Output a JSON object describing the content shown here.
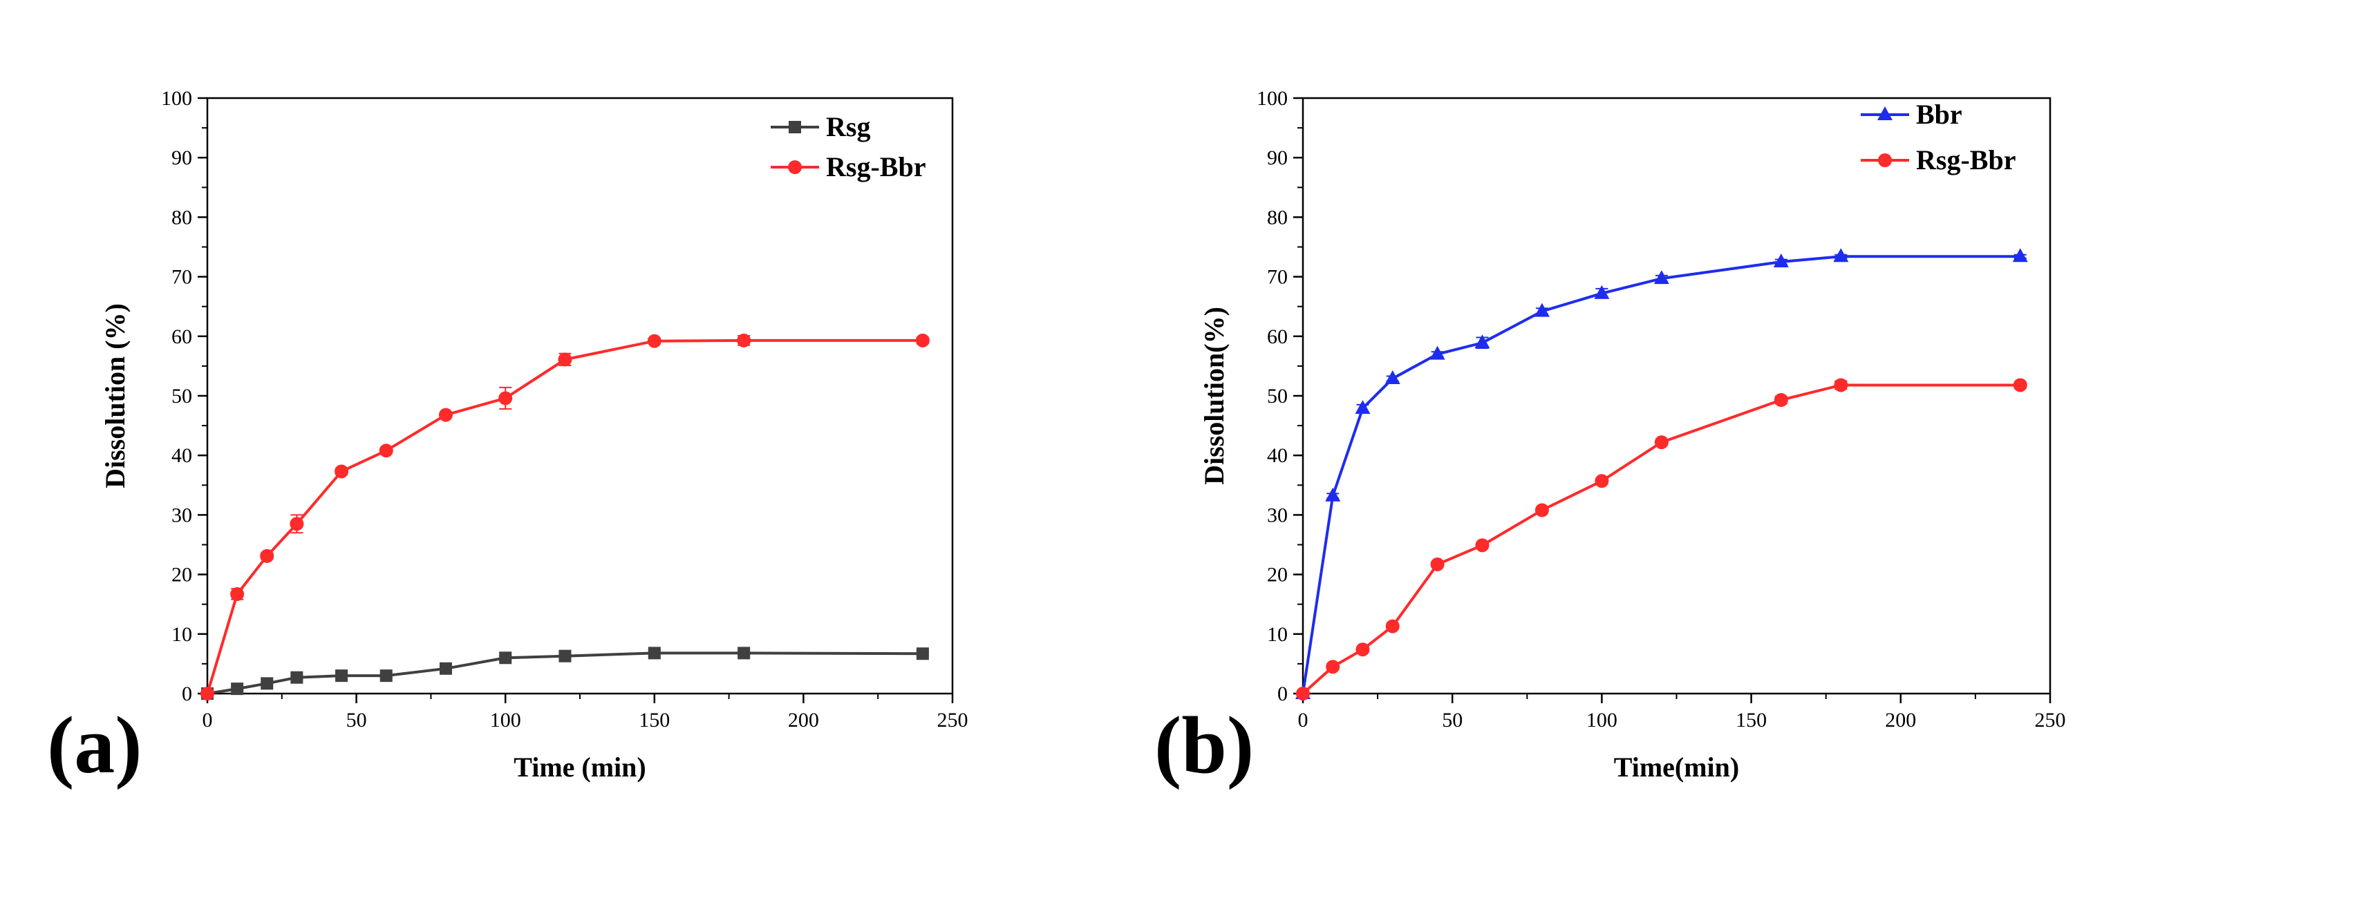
{
  "chart_data": [
    {
      "type": "line",
      "panel_label": "(a)",
      "xlabel": "Time (min)",
      "ylabel": "Dissolution (%)",
      "xlim": [
        0,
        250
      ],
      "ylim": [
        0,
        100
      ],
      "xticks": [
        0,
        50,
        100,
        150,
        200,
        250
      ],
      "yticks": [
        0,
        10,
        20,
        30,
        40,
        50,
        60,
        70,
        80,
        90,
        100
      ],
      "legend_position": "top-right",
      "series": [
        {
          "name": "Rsg",
          "color": "#404040",
          "marker": "square",
          "x": [
            0,
            10,
            20,
            30,
            45,
            60,
            80,
            100,
            120,
            150,
            180,
            240
          ],
          "y": [
            0,
            0.8,
            1.7,
            2.7,
            3.0,
            3.0,
            4.2,
            6.0,
            6.3,
            6.8,
            6.8,
            6.7
          ],
          "err": [
            0.1,
            0.2,
            0.3,
            0.3,
            0.3,
            0.3,
            0.3,
            0.4,
            0.3,
            0.5,
            0.3,
            0.3
          ]
        },
        {
          "name": "Rsg-Bbr",
          "color": "#ff2a2a",
          "marker": "circle",
          "x": [
            0,
            10,
            20,
            30,
            45,
            60,
            80,
            100,
            120,
            150,
            180,
            240
          ],
          "y": [
            0,
            16.7,
            23.1,
            28.5,
            37.3,
            40.8,
            46.8,
            49.6,
            56.1,
            59.2,
            59.3,
            59.3
          ],
          "err": [
            0.2,
            0.9,
            0.5,
            1.5,
            0.5,
            0.4,
            0.4,
            1.8,
            1.0,
            0.4,
            0.8,
            0.5
          ]
        }
      ]
    },
    {
      "type": "line",
      "panel_label": "(b)",
      "xlabel": "Time(min)",
      "ylabel": "Dissolution(%)",
      "xlim": [
        0,
        250
      ],
      "ylim": [
        0,
        100
      ],
      "xticks": [
        0,
        50,
        100,
        150,
        200,
        250
      ],
      "yticks": [
        0,
        10,
        20,
        30,
        40,
        50,
        60,
        70,
        80,
        90,
        100
      ],
      "legend_position": "top-right",
      "series": [
        {
          "name": "Bbr",
          "color": "#1e2cf0",
          "marker": "triangle",
          "x": [
            0,
            10,
            20,
            30,
            45,
            60,
            80,
            100,
            120,
            160,
            180,
            240
          ],
          "y": [
            0,
            33.2,
            47.9,
            52.9,
            57.0,
            58.9,
            64.2,
            67.2,
            69.7,
            72.5,
            73.4,
            73.4
          ],
          "err": [
            0.2,
            0.4,
            0.6,
            0.4,
            0.4,
            0.9,
            0.5,
            0.8,
            0.5,
            0.4,
            0.3,
            0.3
          ]
        },
        {
          "name": "Rsg-Bbr",
          "color": "#ff2a2a",
          "marker": "circle",
          "x": [
            0,
            10,
            20,
            30,
            45,
            60,
            80,
            100,
            120,
            160,
            180,
            240
          ],
          "y": [
            0,
            4.5,
            7.4,
            11.3,
            21.7,
            24.9,
            30.8,
            35.7,
            42.2,
            49.3,
            51.8,
            51.8
          ],
          "err": [
            0.2,
            0.5,
            0.4,
            0.5,
            0.4,
            0.4,
            0.3,
            0.4,
            0.3,
            0.6,
            0.7,
            0.5
          ]
        }
      ]
    }
  ]
}
